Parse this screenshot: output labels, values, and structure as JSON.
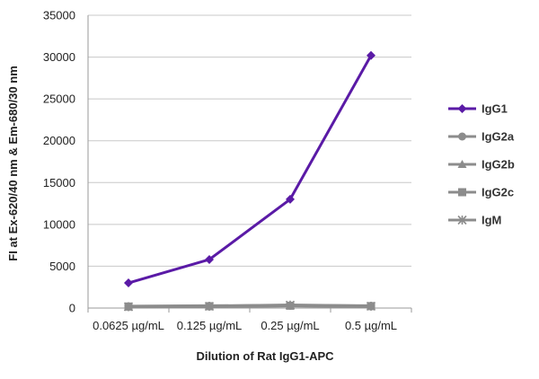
{
  "chart_data": {
    "type": "line",
    "title": "",
    "xlabel": "Dilution of Rat IgG1-APC",
    "ylabel": "FI at Ex-620/40 nm & Em-680/30 nm",
    "categories": [
      "0.0625 µg/mL",
      "0.125 µg/mL",
      "0.25 µg/mL",
      "0.5 µg/mL"
    ],
    "ylim": [
      0,
      35000
    ],
    "yticks": [
      0,
      5000,
      10000,
      15000,
      20000,
      25000,
      30000,
      35000
    ],
    "ytick_labels": [
      "0",
      "5000",
      "10000",
      "15000",
      "20000",
      "25000",
      "30000",
      "35000"
    ],
    "grid": "horizontal",
    "legend_position": "right",
    "series": [
      {
        "name": "IgG1",
        "values": [
          3000,
          5800,
          13000,
          30200
        ],
        "color": "#5a1aa6",
        "marker": "diamond"
      },
      {
        "name": "IgG2a",
        "values": [
          200,
          250,
          300,
          250
        ],
        "color": "#8c8c8c",
        "marker": "circle"
      },
      {
        "name": "IgG2b",
        "values": [
          150,
          200,
          300,
          200
        ],
        "color": "#8c8c8c",
        "marker": "triangle"
      },
      {
        "name": "IgG2c",
        "values": [
          180,
          220,
          280,
          230
        ],
        "color": "#8c8c8c",
        "marker": "square"
      },
      {
        "name": "IgM",
        "values": [
          160,
          210,
          350,
          220
        ],
        "color": "#8c8c8c",
        "marker": "star"
      }
    ]
  }
}
